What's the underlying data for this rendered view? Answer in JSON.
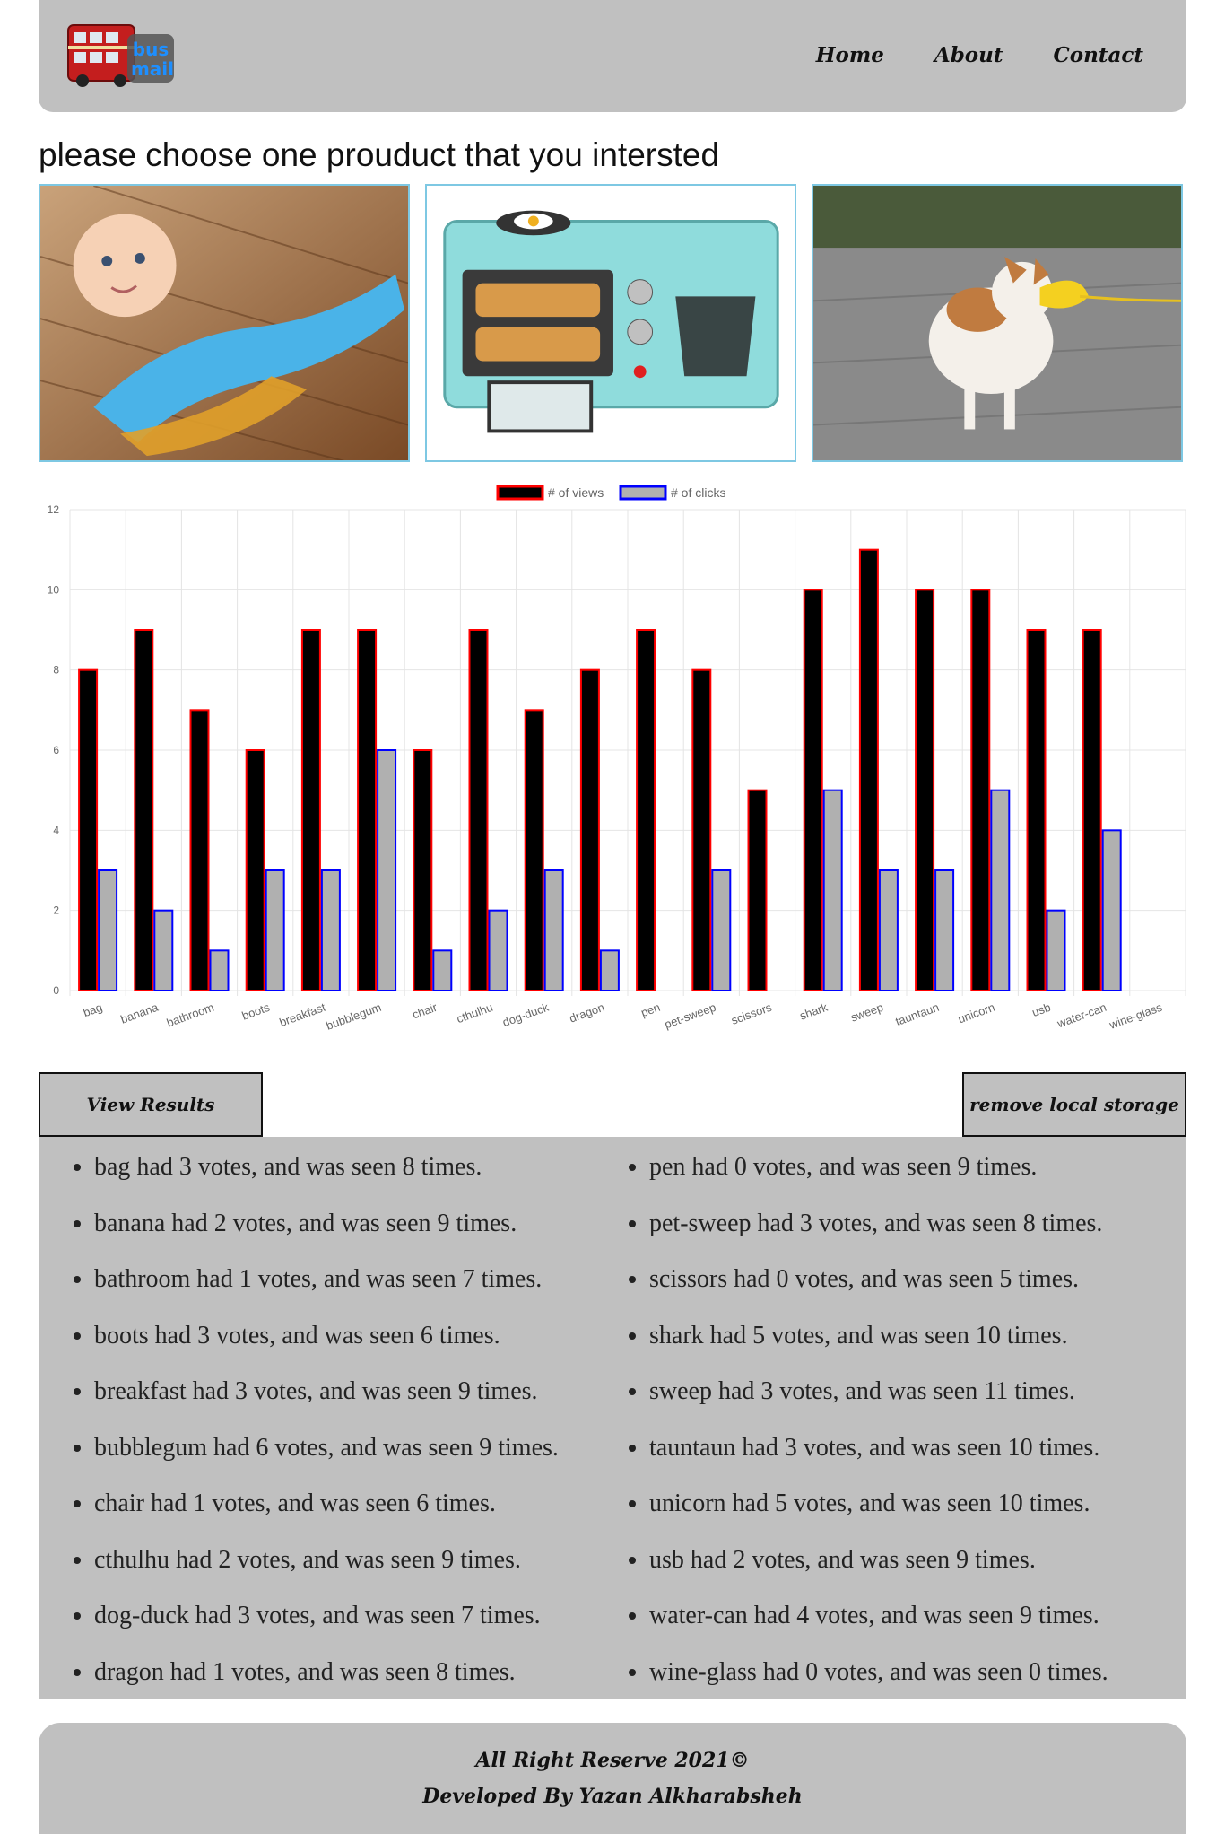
{
  "header": {
    "logo_text_top": "bus",
    "logo_text_bottom": "mail",
    "nav": [
      "Home",
      "About",
      "Contact"
    ]
  },
  "prompt": "please choose one prouduct that you intersted",
  "products": [
    {
      "name": "baby-sweep"
    },
    {
      "name": "breakfast"
    },
    {
      "name": "dog-duck"
    }
  ],
  "chart_data": {
    "type": "bar",
    "categories": [
      "bag",
      "banana",
      "bathroom",
      "boots",
      "breakfast",
      "bubblegum",
      "chair",
      "cthulhu",
      "dog-duck",
      "dragon",
      "pen",
      "pet-sweep",
      "scissors",
      "shark",
      "sweep",
      "tauntaun",
      "unicorn",
      "usb",
      "water-can",
      "wine-glass"
    ],
    "series": [
      {
        "name": "# of views",
        "values": [
          8,
          9,
          7,
          6,
          9,
          9,
          6,
          9,
          7,
          8,
          9,
          8,
          5,
          10,
          11,
          10,
          10,
          9,
          9,
          0
        ],
        "fill": "#000000",
        "stroke": "#ff0000"
      },
      {
        "name": "# of clicks",
        "values": [
          3,
          2,
          1,
          3,
          3,
          6,
          1,
          2,
          3,
          1,
          0,
          3,
          0,
          5,
          3,
          3,
          5,
          2,
          4,
          0
        ],
        "fill": "#b0b0b0",
        "stroke": "#0000ff"
      }
    ],
    "ylim": [
      0,
      12
    ],
    "yticks": [
      0,
      2,
      4,
      6,
      8,
      10,
      12
    ],
    "grid": true,
    "legend": "top-center"
  },
  "buttons": {
    "view_results": "View Results",
    "remove_storage": "remove local storage"
  },
  "results": [
    "bag had 3 votes, and was seen 8 times.",
    "banana had 2 votes, and was seen 9 times.",
    "bathroom had 1 votes, and was seen 7 times.",
    "boots had 3 votes, and was seen 6 times.",
    "breakfast had 3 votes, and was seen 9 times.",
    "bubblegum had 6 votes, and was seen 9 times.",
    "chair had 1 votes, and was seen 6 times.",
    "cthulhu had 2 votes, and was seen 9 times.",
    "dog-duck had 3 votes, and was seen 7 times.",
    "dragon had 1 votes, and was seen 8 times.",
    "pen had 0 votes, and was seen 9 times.",
    "pet-sweep had 3 votes, and was seen 8 times.",
    "scissors had 0 votes, and was seen 5 times.",
    "shark had 5 votes, and was seen 10 times.",
    "sweep had 3 votes, and was seen 11 times.",
    "tauntaun had 3 votes, and was seen 10 times.",
    "unicorn had 5 votes, and was seen 10 times.",
    "usb had 2 votes, and was seen 9 times.",
    "water-can had 4 votes, and was seen 9 times.",
    "wine-glass had 0 votes, and was seen 0 times."
  ],
  "footer": {
    "line1": "All Right Reserve 2021©",
    "line2": "Developed By Yazan Alkharabsheh"
  }
}
